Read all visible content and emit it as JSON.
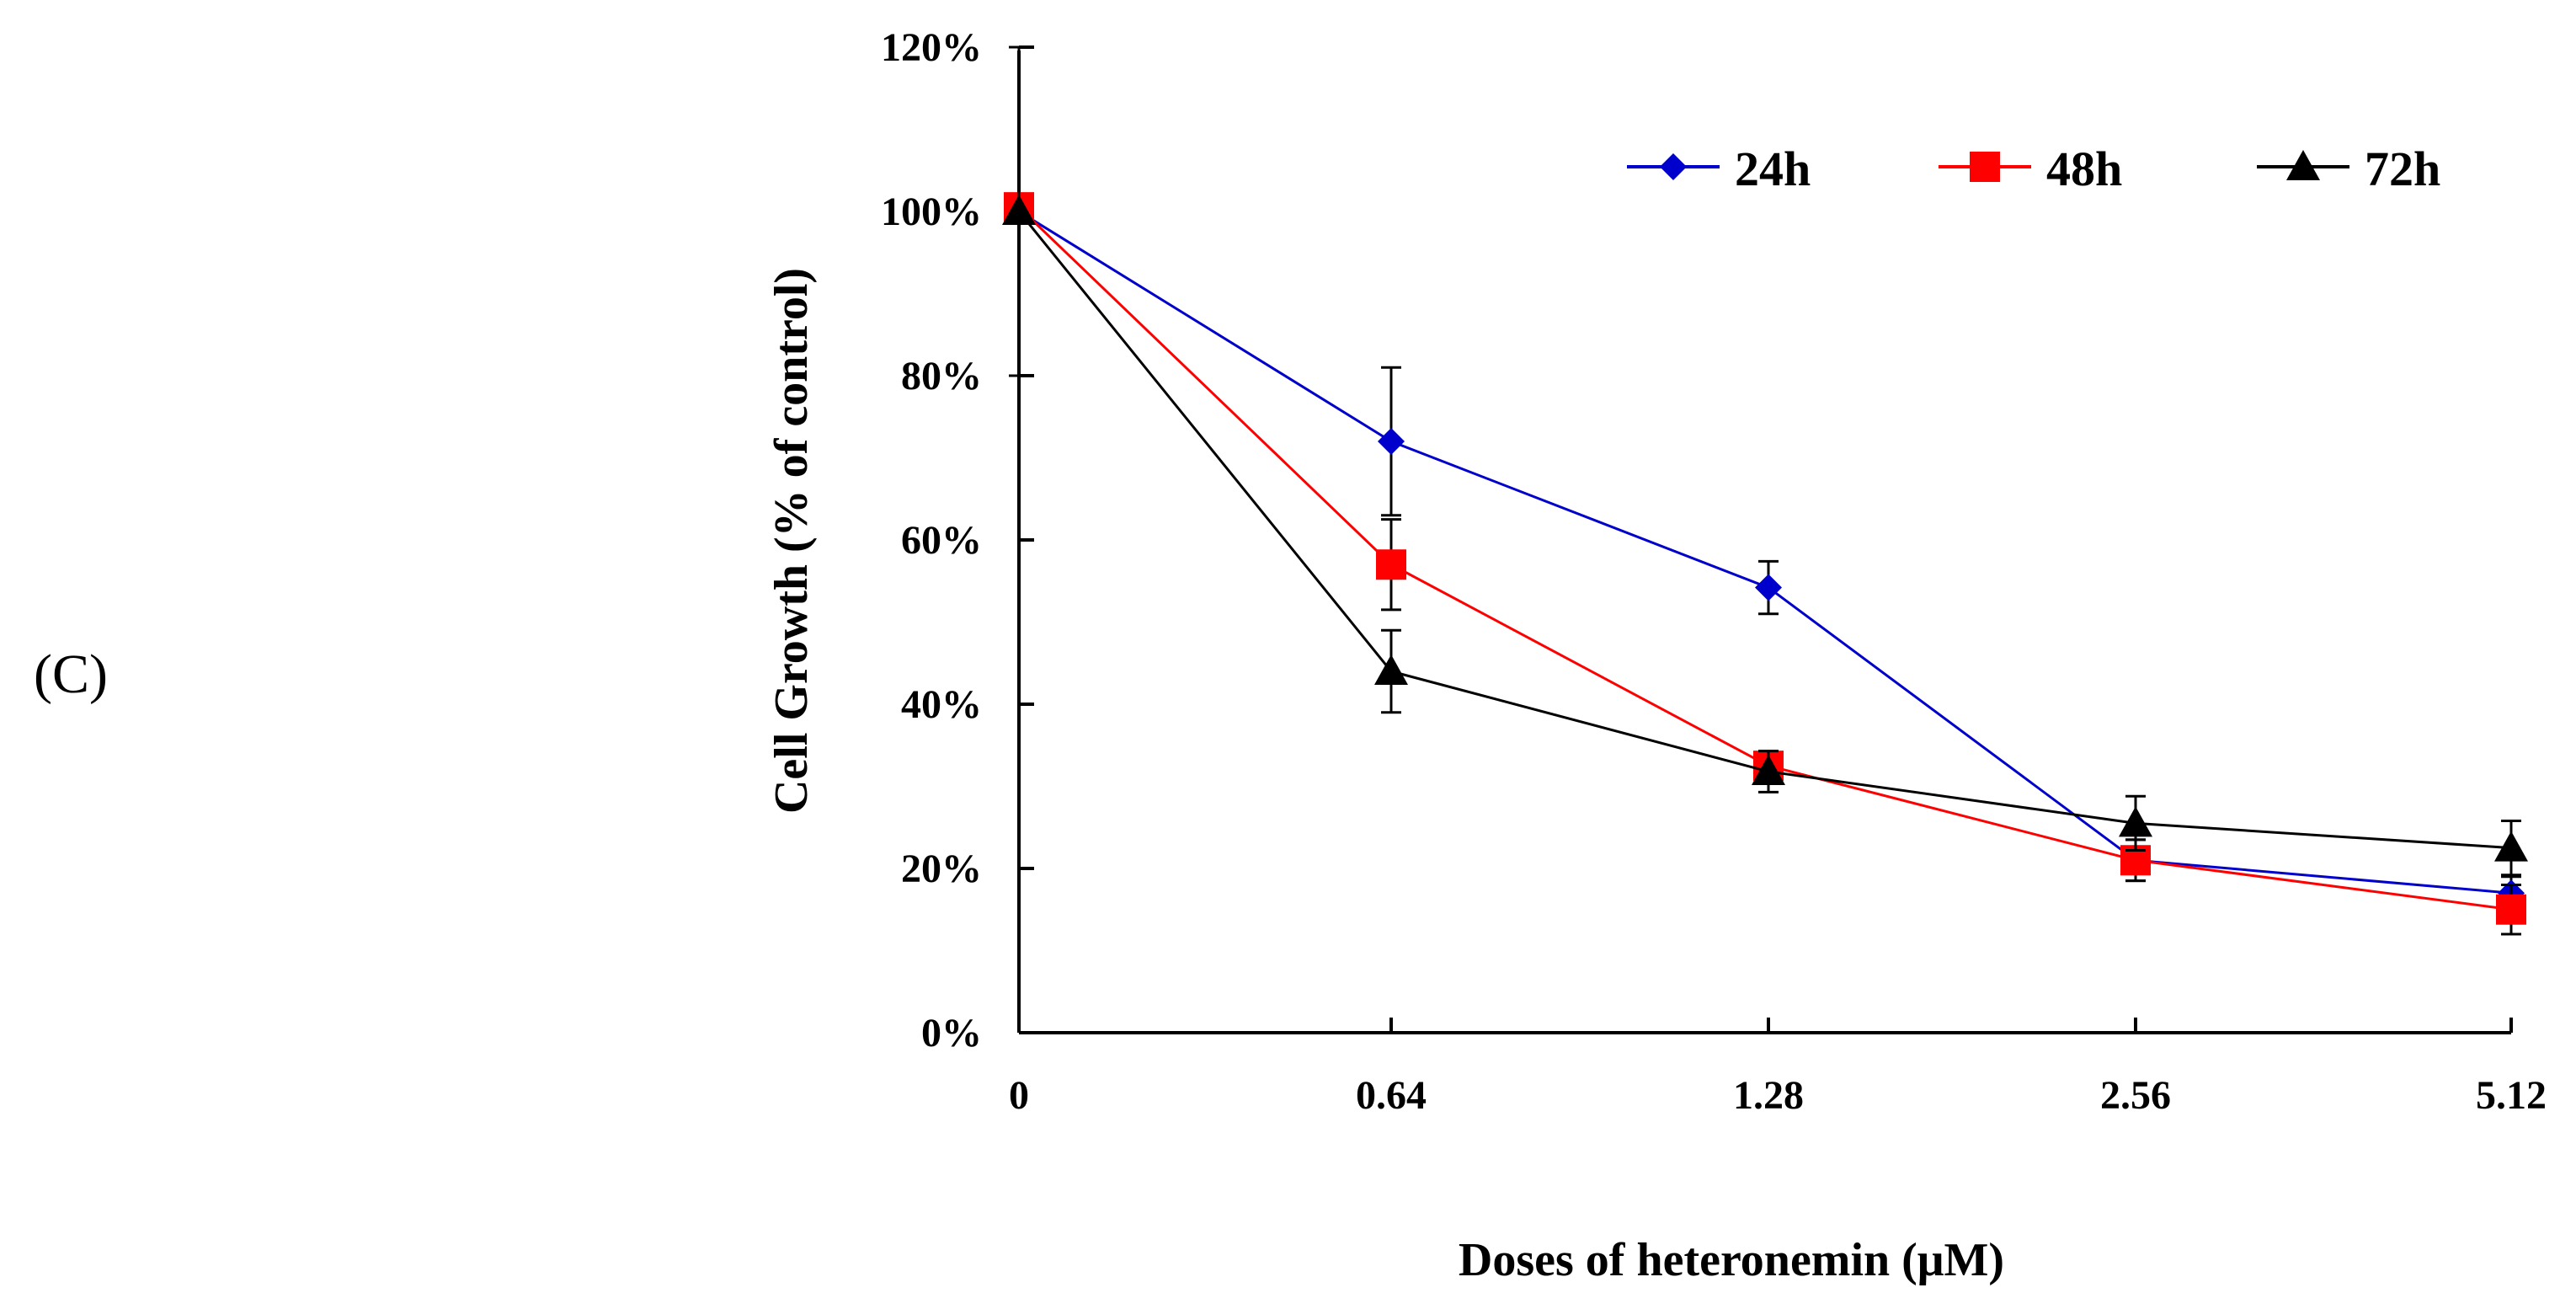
{
  "panel_label": "(C)",
  "chart_data": {
    "type": "line",
    "title": "",
    "xlabel": "Doses of  heteronemin (μM)",
    "ylabel": "Cell  Growth  (% of control)",
    "categories": [
      "0",
      "0.64",
      "1.28",
      "2.56",
      "5.12"
    ],
    "y_ticks": [
      "0%",
      "20%",
      "40%",
      "60%",
      "80%",
      "100%",
      "120%"
    ],
    "ylim": [
      0,
      120
    ],
    "grid": false,
    "legend_position": "top-right",
    "series": [
      {
        "name": "24h",
        "color": "#0000cc",
        "marker": "diamond",
        "values": [
          100,
          72,
          54.2,
          21,
          17
        ],
        "errors": [
          0,
          9,
          3.2,
          2.5,
          2
        ]
      },
      {
        "name": "48h",
        "color": "#ff0000",
        "marker": "square",
        "values": [
          100.5,
          57,
          32.5,
          21,
          15
        ],
        "errors": [
          0,
          5.5,
          1.8,
          2.5,
          3
        ]
      },
      {
        "name": "72h",
        "color": "#000000",
        "marker": "triangle",
        "values": [
          100,
          44,
          31.8,
          25.5,
          22.5
        ],
        "errors": [
          20,
          5,
          2.5,
          3.3,
          3.3
        ]
      }
    ]
  }
}
